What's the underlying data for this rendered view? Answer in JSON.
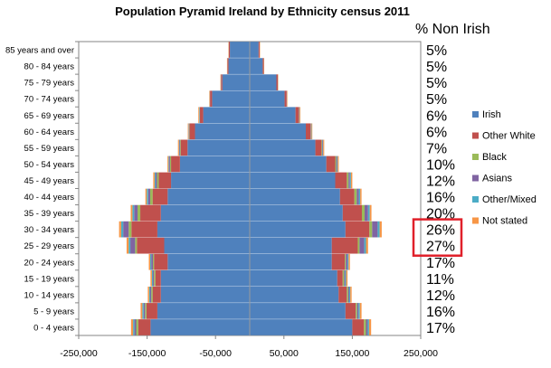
{
  "chart_data": {
    "type": "bar",
    "orientation": "horizontal",
    "stacked": true,
    "title": "Population Pyramid Ireland by Ethnicity census 2011",
    "categories": [
      "85 years and over",
      "80 - 84 years",
      "75 - 79 years",
      "70 - 74 years",
      "65 - 69 years",
      "60 - 64 years",
      "55 - 59 years",
      "50 - 54 years",
      "45 - 49 years",
      "40 - 44 years",
      "35 - 39 years",
      "30 - 34 years",
      "25 - 29 years",
      "20 - 24 years",
      "15 - 19 years",
      "10 - 14 years",
      "5 - 9 years",
      "0 - 4 years"
    ],
    "xlim": [
      -250000,
      250000
    ],
    "xticks": [
      "-250,000",
      "-150,000",
      "-50,000",
      "50,000",
      "150,000",
      "250,000"
    ],
    "xtick_values": [
      -250000,
      -150000,
      -50000,
      50000,
      150000,
      250000
    ],
    "legend_position": "right",
    "series_colors": {
      "Irish": "#4F81BD",
      "Other White": "#C0504D",
      "Black": "#9BBB59",
      "Asians": "#8064A2",
      "Other/Mixed": "#4BACC6",
      "Not stated": "#F79646"
    },
    "series": [
      {
        "name": "Irish",
        "left": [
          -29000,
          -31000,
          -40000,
          -55000,
          -68000,
          -80000,
          -91000,
          -102000,
          -115000,
          -120000,
          -130000,
          -135000,
          -125000,
          -120000,
          -130000,
          -130000,
          -135000,
          -145000
        ],
        "right": [
          13000,
          19000,
          39000,
          51000,
          67000,
          82000,
          96000,
          112000,
          125000,
          132000,
          136000,
          140000,
          120000,
          120000,
          128000,
          130000,
          140000,
          150000
        ]
      },
      {
        "name": "Other White",
        "left": [
          -1500,
          -1500,
          -2000,
          -3000,
          -5000,
          -8000,
          -10000,
          -13000,
          -18000,
          -22000,
          -30000,
          -38000,
          -40000,
          -20000,
          -8000,
          -12000,
          -16000,
          -18000
        ]
      },
      {
        "name": "Black",
        "left": [
          0,
          0,
          0,
          0,
          -300,
          -500,
          -800,
          -1500,
          -2500,
          -3500,
          -4000,
          -4000,
          -2500,
          -1500,
          -2000,
          -2000,
          -2000,
          -3000
        ]
      },
      {
        "name": "Asians",
        "left": [
          0,
          0,
          0,
          -200,
          -300,
          -500,
          -800,
          -1200,
          -2000,
          -3000,
          -5000,
          -8000,
          -7000,
          -2500,
          -1500,
          -1500,
          -2000,
          -2500
        ]
      },
      {
        "name": "Other/Mixed",
        "left": [
          -200,
          -200,
          -300,
          -300,
          -500,
          -500,
          -800,
          -1000,
          -1500,
          -2000,
          -2500,
          -3000,
          -2500,
          -1500,
          -1500,
          -1500,
          -2000,
          -2000
        ]
      },
      {
        "name": "Not stated",
        "left": [
          -500,
          -500,
          -500,
          -700,
          -1000,
          -1000,
          -1500,
          -1500,
          -2000,
          -2000,
          -2500,
          -3000,
          -3000,
          -2000,
          -2000,
          -2000,
          -2500,
          -3000
        ]
      }
    ],
    "right_other_white": [
      1500,
      1500,
      2000,
      3000,
      5000,
      7000,
      9000,
      13000,
      17000,
      21000,
      28000,
      35000,
      38000,
      19000,
      8000,
      12000,
      15000,
      17000
    ],
    "right_black": [
      0,
      0,
      0,
      0,
      300,
      500,
      800,
      1500,
      2500,
      3500,
      4000,
      4000,
      2500,
      1500,
      2000,
      2000,
      2000,
      3000
    ],
    "right_asians": [
      0,
      0,
      0,
      200,
      300,
      500,
      800,
      1200,
      2000,
      3000,
      5000,
      8000,
      7000,
      2500,
      1500,
      1500,
      2000,
      2500
    ],
    "right_other_mixed": [
      200,
      200,
      300,
      300,
      500,
      500,
      800,
      1000,
      1500,
      2000,
      2500,
      3000,
      2500,
      1500,
      1500,
      1500,
      2000,
      2000
    ],
    "right_not_stated": [
      500,
      500,
      500,
      700,
      1000,
      1000,
      1500,
      1500,
      2000,
      2000,
      2500,
      3000,
      3000,
      2000,
      2000,
      2000,
      2500,
      3000
    ],
    "pct_header": "% Non Irish",
    "pct_non_irish": [
      "5%",
      "5%",
      "5%",
      "5%",
      "6%",
      "6%",
      "7%",
      "10%",
      "12%",
      "16%",
      "20%",
      "26%",
      "27%",
      "17%",
      "11%",
      "12%",
      "16%",
      "17%"
    ],
    "highlight_box_color": "#E0202A"
  }
}
